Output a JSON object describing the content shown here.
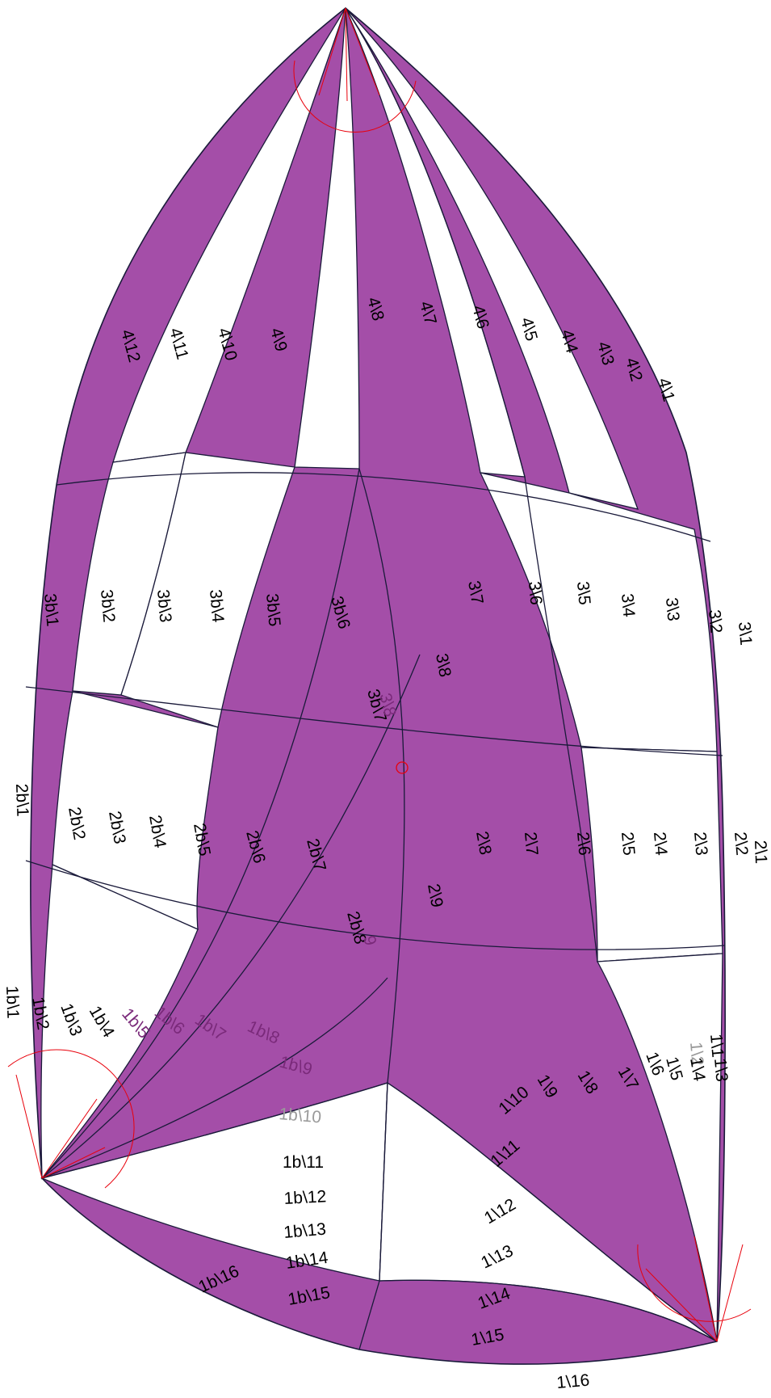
{
  "colors": {
    "panel_fill": "#a44ea8",
    "panel_stroke": "#1a1a3a",
    "construction": "#e8000b",
    "background": "#ffffff"
  },
  "labels": {
    "p4_12": "4\\12",
    "p4_11": "4\\11",
    "p4_10": "4\\10",
    "p4_9": "4\\9",
    "p4_8": "4\\8",
    "p4_7": "4\\7",
    "p4_6": "4\\6",
    "p4_5": "4\\5",
    "p4_4": "4\\4",
    "p4_3": "4\\3",
    "p4_2": "4\\2",
    "p4_1": "4\\1",
    "p3b_1": "3b\\1",
    "p3b_2": "3b\\2",
    "p3b_3": "3b\\3",
    "p3b_4": "3b\\4",
    "p3b_5": "3b\\5",
    "p3b_6": "3b\\6",
    "p3b_7": "3b\\7",
    "p3b_8": "3\\8",
    "p3_8": "3\\8",
    "p3_7": "3\\7",
    "p3_6": "3\\6",
    "p3_5": "3\\5",
    "p3_4": "3\\4",
    "p3_3": "3\\3",
    "p3_2": "3\\2",
    "p3_1": "3\\1",
    "p2b_1": "2b\\1",
    "p2b_2": "2b\\2",
    "p2b_3": "2b\\3",
    "p2b_4": "2b\\4",
    "p2b_5": "2b\\5",
    "p2b_6": "2b\\6",
    "p2b_7": "2b\\7",
    "p2b_8": "2b\\8",
    "p2b_9": "9",
    "p2_9": "2\\9",
    "p2_8": "2\\8",
    "p2_7": "2\\7",
    "p2_6": "2\\6",
    "p2_5": "2\\5",
    "p2_4": "2\\4",
    "p2_3": "2\\3",
    "p2_2": "2\\2",
    "p2_1": "2\\1",
    "p1b_1": "1b\\1",
    "p1b_2": "1b\\2",
    "p1b_3": "1b\\3",
    "p1b_4": "1b\\4",
    "p1b_5": "1b\\5",
    "p1b_6": "1b\\6",
    "p1b_7": "1b\\7",
    "p1b_8": "1b\\8",
    "p1b_9": "1b\\9",
    "p1b_10": "1b\\10",
    "p1b_11": "1b\\11",
    "p1b_12": "1b\\12",
    "p1b_13": "1b\\13",
    "p1b_14": "1b\\14",
    "p1b_15": "1b\\15",
    "p1b_16": "1b\\16",
    "p1_1": "1\\1",
    "p1_2": "1\\2",
    "p1_3": "1\\3",
    "p1_4": "1\\4",
    "p1_5": "1\\5",
    "p1_6": "1\\6",
    "p1_7": "1\\7",
    "p1_8": "1\\8",
    "p1_9": "1\\9",
    "p1_10": "1\\10",
    "p1_11": "1\\11",
    "p1_12": "1\\12",
    "p1_13": "1\\13",
    "p1_14": "1\\14",
    "p1_15": "1\\15",
    "p1_16": "1\\16"
  }
}
